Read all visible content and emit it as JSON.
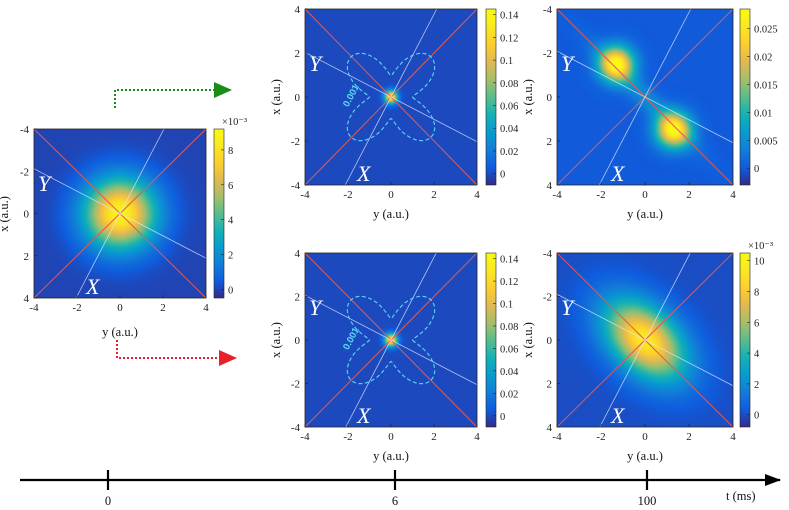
{
  "time_axis": {
    "label": "t (ms)",
    "ticks": [
      {
        "t_ms": 0,
        "label": "0"
      },
      {
        "t_ms": 6,
        "label": "6"
      },
      {
        "t_ms": 100,
        "label": "100"
      }
    ]
  },
  "arrows": [
    {
      "name": "upper-branch-arrow",
      "color": "#1a8c1a"
    },
    {
      "name": "lower-branch-arrow",
      "color": "#e8202a"
    }
  ],
  "chart_data": [
    {
      "id": "p0",
      "type": "heatmap",
      "time_ms": 0,
      "xlabel": "y (a.u.)",
      "ylabel": "x (a.u.)",
      "xlim": [
        -4,
        4
      ],
      "ylim": [
        -4,
        4
      ],
      "x_ticks": [
        "-4",
        "-2",
        "0",
        "2",
        "4"
      ],
      "y_ticks": [
        "-4",
        "-2",
        "0",
        "2",
        "4"
      ],
      "rotated_axes": [
        "X",
        "Y"
      ],
      "colorbar": {
        "min": -0.0005,
        "max": 0.0092,
        "ticks": [
          0,
          0.002,
          0.004,
          0.006,
          0.008
        ],
        "tick_labels": [
          "0",
          "2",
          "4",
          "6",
          "8"
        ],
        "exponent": "×10⁻³"
      },
      "density": {
        "peak": 0.0088,
        "center": [
          0,
          0
        ],
        "sigma_major": 1.15,
        "sigma_minor": 1.15,
        "angle_deg": 0
      }
    },
    {
      "id": "p1",
      "type": "heatmap",
      "time_ms": 6,
      "xlabel": "y (a.u.)",
      "ylabel": "x (a.u.)",
      "xlim": [
        -4,
        4
      ],
      "ylim": [
        4,
        -4
      ],
      "x_ticks": [
        "-4",
        "-2",
        "0",
        "2",
        "4"
      ],
      "y_ticks": [
        "4",
        "2",
        "0",
        "-2",
        "-4"
      ],
      "rotated_axes": [
        "X",
        "Y"
      ],
      "contour_label": "0.001",
      "colorbar": {
        "min": -0.01,
        "max": 0.145,
        "ticks": [
          0,
          0.02,
          0.04,
          0.06,
          0.08,
          0.1,
          0.12,
          0.14
        ],
        "tick_labels": [
          "0",
          "0.02",
          "0.04",
          "0.06",
          "0.08",
          "0.1",
          "0.12",
          "0.14"
        ],
        "exponent": ""
      },
      "density": {
        "peak": 0.14,
        "center": [
          0,
          0
        ],
        "sigma_major": 0.2,
        "sigma_minor": 0.2,
        "angle_deg": 0
      }
    },
    {
      "id": "p2",
      "type": "heatmap",
      "time_ms": 6,
      "xlabel": "y (a.u.)",
      "ylabel": "x (a.u.)",
      "xlim": [
        -4,
        4
      ],
      "ylim": [
        4,
        -4
      ],
      "x_ticks": [
        "-4",
        "-2",
        "0",
        "2",
        "4"
      ],
      "y_ticks": [
        "4",
        "2",
        "0",
        "-2",
        "-4"
      ],
      "rotated_axes": [
        "X",
        "Y"
      ],
      "contour_label": "0.001",
      "colorbar": {
        "min": -0.01,
        "max": 0.145,
        "ticks": [
          0,
          0.02,
          0.04,
          0.06,
          0.08,
          0.1,
          0.12,
          0.14
        ],
        "tick_labels": [
          "0",
          "0.02",
          "0.04",
          "0.06",
          "0.08",
          "0.1",
          "0.12",
          "0.14"
        ],
        "exponent": ""
      },
      "density": {
        "peak": 0.14,
        "center": [
          0,
          0
        ],
        "sigma_major": 0.2,
        "sigma_minor": 0.2,
        "angle_deg": 0
      }
    },
    {
      "id": "p3",
      "type": "heatmap",
      "time_ms": 100,
      "xlabel": "y (a.u.)",
      "ylabel": "x (a.u.)",
      "xlim": [
        -4,
        4
      ],
      "ylim": [
        -4,
        4
      ],
      "x_ticks": [
        "-4",
        "-2",
        "0",
        "2",
        "4"
      ],
      "y_ticks": [
        "-4",
        "-2",
        "0",
        "2",
        "4"
      ],
      "rotated_axes": [
        "X",
        "Y"
      ],
      "colorbar": {
        "min": -0.003,
        "max": 0.0285,
        "ticks": [
          0,
          0.005,
          0.01,
          0.015,
          0.02,
          0.025
        ],
        "tick_labels": [
          "0",
          "0.005",
          "0.01",
          "0.015",
          "0.02",
          "0.025"
        ],
        "exponent": ""
      },
      "density": {
        "peak": 0.027,
        "lobes": [
          [
            -1.3,
            -1.5
          ],
          [
            1.3,
            1.5
          ]
        ],
        "lobe_sigma": 0.55,
        "bridge_axis_deg": 45
      }
    },
    {
      "id": "p4",
      "type": "heatmap",
      "time_ms": 100,
      "xlabel": "y (a.u.)",
      "ylabel": "x (a.u.)",
      "xlim": [
        -4,
        4
      ],
      "ylim": [
        -4,
        4
      ],
      "x_ticks": [
        "-4",
        "-2",
        "0",
        "2",
        "4"
      ],
      "y_ticks": [
        "-4",
        "-2",
        "0",
        "2",
        "4"
      ],
      "rotated_axes": [
        "X",
        "Y"
      ],
      "colorbar": {
        "min": -0.0008,
        "max": 0.0105,
        "ticks": [
          0,
          0.002,
          0.004,
          0.006,
          0.008,
          0.01
        ],
        "tick_labels": [
          "0",
          "2",
          "4",
          "6",
          "8",
          "10"
        ],
        "exponent": "×10⁻³"
      },
      "density": {
        "peak": 0.0095,
        "center": [
          0,
          0
        ],
        "sigma_major": 1.5,
        "sigma_minor": 0.95,
        "angle_deg": 45
      }
    }
  ]
}
